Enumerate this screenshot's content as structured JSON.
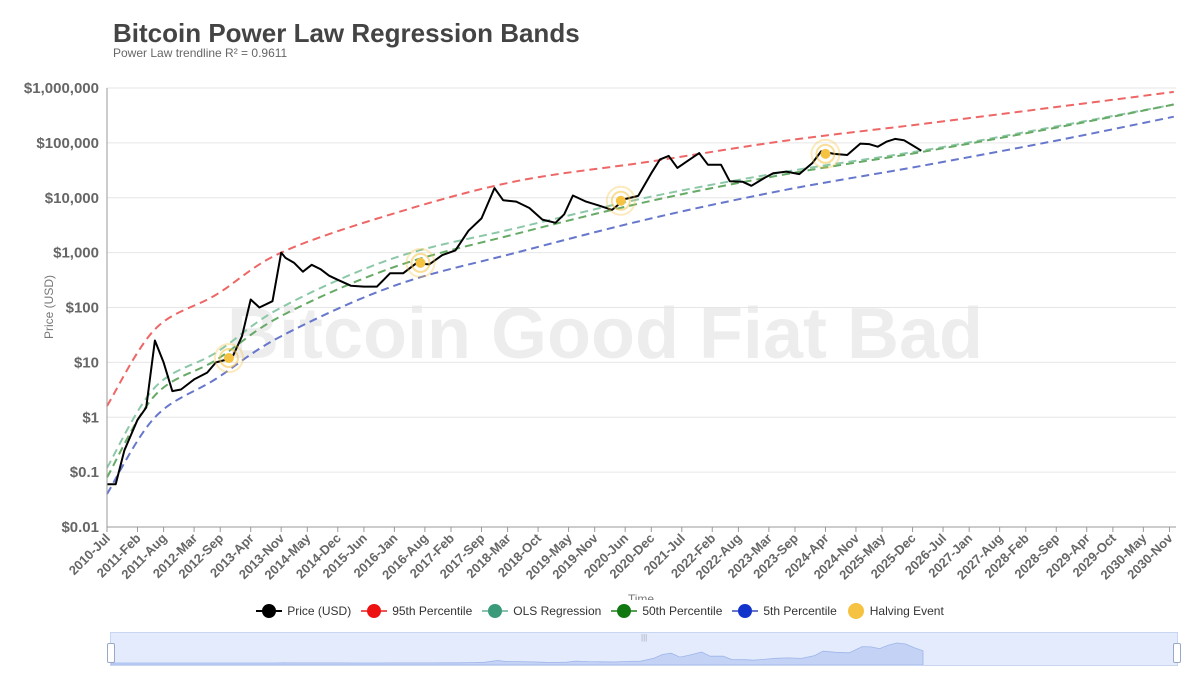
{
  "header": {
    "title": "Bitcoin Power Law Regression Bands",
    "subtitle": "Power Law trendline R² = 0.9611"
  },
  "watermark": "Bitcoin Good Fiat Bad",
  "legend": [
    {
      "label": "Price (USD)",
      "color": "#000000",
      "style": "solid"
    },
    {
      "label": "95th Percentile",
      "color": "#ee1111",
      "style": "dashed"
    },
    {
      "label": "OLS Regression",
      "color": "#3a9a7a",
      "style": "dashed"
    },
    {
      "label": "50th Percentile",
      "color": "#117711",
      "style": "dashed"
    },
    {
      "label": "5th Percentile",
      "color": "#1133cc",
      "style": "dashed"
    },
    {
      "label": "Halving Event",
      "color": "#f5c242",
      "style": "dot"
    }
  ],
  "chart_data": {
    "type": "line",
    "title": "Bitcoin Power Law Regression Bands",
    "subtitle": "Power Law trendline R² = 0.9611",
    "xlabel": "Time",
    "ylabel": "Price (USD)",
    "y_scale": "log",
    "ylim": [
      0.01,
      1000000
    ],
    "y_ticks": [
      "$0.01",
      "$0.1",
      "$1",
      "$10",
      "$100",
      "$1,000",
      "$10,000",
      "$100,000",
      "$1,000,000"
    ],
    "xlim": [
      "2010-07",
      "2030-12"
    ],
    "x_ticks": [
      "2010-Jul",
      "2011-Feb",
      "2011-Aug",
      "2012-Mar",
      "2012-Sep",
      "2013-Apr",
      "2013-Nov",
      "2014-May",
      "2014-Dec",
      "2015-Jun",
      "2016-Jan",
      "2016-Aug",
      "2017-Feb",
      "2017-Sep",
      "2018-Mar",
      "2018-Oct",
      "2019-May",
      "2019-Nov",
      "2020-Jun",
      "2020-Dec",
      "2021-Jul",
      "2022-Feb",
      "2022-Aug",
      "2023-Mar",
      "2023-Sep",
      "2024-Apr",
      "2024-Nov",
      "2025-May",
      "2025-Dec",
      "2026-Jul",
      "2027-Jan",
      "2027-Aug",
      "2028-Feb",
      "2028-Sep",
      "2029-Apr",
      "2029-Oct",
      "2030-May",
      "2030-Nov"
    ],
    "grid": true,
    "legend_position": "bottom",
    "series": [
      {
        "name": "Price (USD)",
        "color": "#000000",
        "style": "solid",
        "x": [
          "2010-07",
          "2010-09",
          "2010-11",
          "2011-02",
          "2011-04",
          "2011-06",
          "2011-08",
          "2011-10",
          "2011-12",
          "2012-03",
          "2012-06",
          "2012-08",
          "2012-10",
          "2012-12",
          "2013-02",
          "2013-04",
          "2013-06",
          "2013-09",
          "2013-11",
          "2013-12",
          "2014-02",
          "2014-04",
          "2014-06",
          "2014-08",
          "2014-10",
          "2014-12",
          "2015-03",
          "2015-06",
          "2015-09",
          "2015-12",
          "2016-03",
          "2016-06",
          "2016-09",
          "2016-12",
          "2017-03",
          "2017-06",
          "2017-09",
          "2017-12",
          "2018-02",
          "2018-05",
          "2018-08",
          "2018-11",
          "2019-02",
          "2019-04",
          "2019-06",
          "2019-09",
          "2019-12",
          "2020-03",
          "2020-06",
          "2020-09",
          "2020-12",
          "2021-02",
          "2021-04",
          "2021-06",
          "2021-08",
          "2021-11",
          "2022-01",
          "2022-04",
          "2022-06",
          "2022-09",
          "2022-11",
          "2023-02",
          "2023-04",
          "2023-07",
          "2023-10",
          "2024-01",
          "2024-03",
          "2024-06",
          "2024-09",
          "2024-12",
          "2025-02",
          "2025-04",
          "2025-06",
          "2025-08",
          "2025-10",
          "2025-12",
          "2026-02"
        ],
        "values": [
          0.06,
          0.06,
          0.25,
          0.9,
          1.5,
          25,
          10,
          3,
          3.2,
          4.9,
          6.5,
          10,
          11,
          13.5,
          30,
          140,
          100,
          130,
          1000,
          800,
          650,
          450,
          600,
          500,
          380,
          320,
          250,
          240,
          240,
          420,
          420,
          640,
          610,
          900,
          1100,
          2500,
          4200,
          15000,
          9000,
          8500,
          6500,
          4000,
          3500,
          5000,
          11000,
          8500,
          7200,
          6000,
          9500,
          10800,
          28000,
          50000,
          58000,
          35000,
          45000,
          65000,
          40000,
          40000,
          20000,
          19500,
          16500,
          23000,
          28000,
          30000,
          27000,
          43000,
          70000,
          63000,
          60000,
          97000,
          95000,
          85000,
          105000,
          118000,
          112000,
          90000,
          72000
        ]
      },
      {
        "name": "95th Percentile",
        "color": "#ee1111",
        "style": "dashed",
        "x": [
          "2010-07",
          "2011-06",
          "2012-08",
          "2013-11",
          "2016-01",
          "2018-05",
          "2020-12",
          "2023-07",
          "2026-02",
          "2028-09",
          "2030-12"
        ],
        "values": [
          1.6,
          40,
          170,
          1000,
          5200,
          20000,
          46000,
          110000,
          220000,
          450000,
          850000
        ]
      },
      {
        "name": "OLS Regression",
        "color": "#3a9a7a",
        "style": "dashed",
        "x": [
          "2010-07",
          "2011-06",
          "2012-08",
          "2013-11",
          "2016-01",
          "2018-05",
          "2020-12",
          "2023-07",
          "2026-02",
          "2028-09",
          "2030-12"
        ],
        "values": [
          0.12,
          3.5,
          15,
          100,
          800,
          2800,
          10500,
          30000,
          72000,
          200000,
          500000
        ]
      },
      {
        "name": "50th Percentile",
        "color": "#117711",
        "style": "dashed",
        "x": [
          "2010-07",
          "2011-06",
          "2012-08",
          "2013-11",
          "2016-01",
          "2018-05",
          "2020-12",
          "2023-07",
          "2026-02",
          "2028-09",
          "2030-12"
        ],
        "values": [
          0.08,
          2.5,
          11,
          70,
          550,
          2200,
          8800,
          27000,
          68000,
          190000,
          500000
        ]
      },
      {
        "name": "5th Percentile",
        "color": "#1133cc",
        "style": "dashed",
        "x": [
          "2010-07",
          "2011-06",
          "2012-08",
          "2013-11",
          "2016-01",
          "2018-05",
          "2020-12",
          "2023-07",
          "2026-02",
          "2028-09",
          "2030-12"
        ],
        "values": [
          0.04,
          1.0,
          5.0,
          30,
          250,
          1000,
          4200,
          14000,
          38000,
          110000,
          300000
        ]
      }
    ],
    "halving_events": [
      {
        "x": "2012-11",
        "value": 12
      },
      {
        "x": "2016-07",
        "value": 650
      },
      {
        "x": "2020-05",
        "value": 8800
      },
      {
        "x": "2024-04",
        "value": 63000
      }
    ]
  }
}
